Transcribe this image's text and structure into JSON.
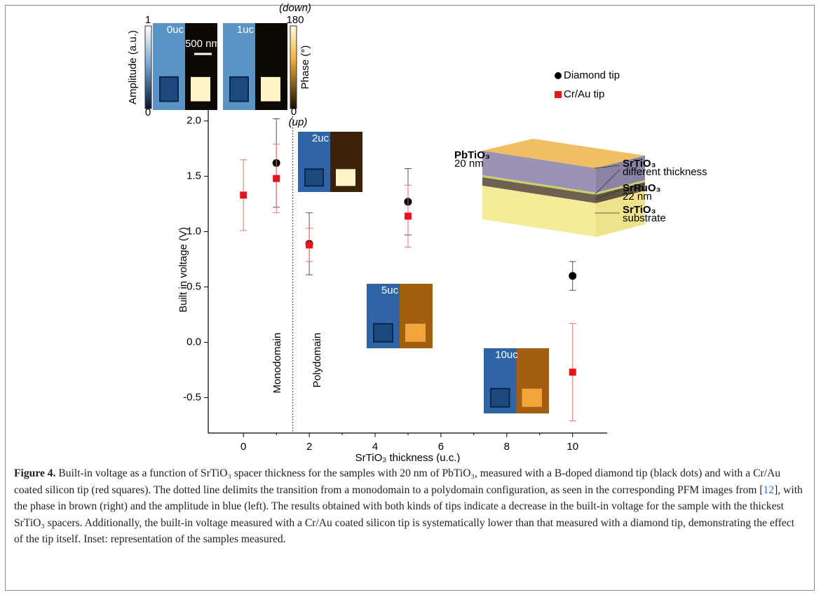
{
  "chart_data": {
    "type": "scatter",
    "x_label": "SrTiO₃ thickness (u.c.)",
    "y_label": "Built in voltage (V)",
    "xlim": [
      -1.07,
      11.05
    ],
    "xticks": [
      0,
      2,
      4,
      6,
      8,
      10
    ],
    "ylim": [
      -0.82,
      2.08
    ],
    "yticks": [
      {
        "value": 2,
        "label": "2.0"
      },
      {
        "value": 1.5,
        "label": "1.5"
      },
      {
        "value": 1,
        "label": "1.0"
      },
      {
        "value": 0.5,
        "label": "0.5"
      },
      {
        "value": 0,
        "label": "0.0"
      },
      {
        "value": -0.5,
        "label": "-0.5"
      }
    ],
    "series": [
      {
        "name": "Diamond tip",
        "color": "#000000",
        "marker": "circle",
        "x": [
          1,
          2,
          5,
          10
        ],
        "values": [
          1.62,
          0.89,
          1.27,
          0.6
        ],
        "errors": [
          0.4,
          0.28,
          0.3,
          0.13
        ]
      },
      {
        "name": "Cr/Au tip",
        "color": "#e8141b",
        "marker": "square",
        "x": [
          0,
          1,
          2,
          5,
          10
        ],
        "values": [
          1.33,
          1.48,
          0.88,
          1.14,
          -0.27
        ],
        "errors": [
          0.32,
          0.31,
          0.15,
          0.28,
          0.44
        ]
      }
    ],
    "divider_x": 1.5,
    "annotations": [
      "Monodomain",
      "Polydomain"
    ]
  },
  "insets": {
    "pfm_labels": [
      "0uc",
      "1uc",
      "2uc",
      "5uc",
      "10uc"
    ],
    "scale_bar": "500 nm",
    "amplitude_bar": {
      "label": "Amplitude (a.u.)",
      "max": "1",
      "min": "0"
    },
    "phase_bar": {
      "label": "Phase (°)",
      "top": "(down)",
      "max": "180",
      "min": "0",
      "bottom": "(up)"
    },
    "layers": [
      [
        "PbTiO₃",
        "20 nm"
      ],
      [
        "SrTiO₃",
        "different thickness"
      ],
      [
        "SrRuO₃",
        "22 nm"
      ],
      [
        "SrTiO₃",
        "substrate"
      ]
    ]
  },
  "caption": {
    "label": "Figure 4.",
    "text": " Built-in voltage as a function of SrTiO₃ spacer thickness for the samples with 20 nm of PbTiO₃, measured with a B-doped diamond tip (black dots) and with a Cr/Au coated silicon tip (red squares). The dotted line delimits the transition from a monodomain to a polydomain configuration, as seen in the corresponding PFM images from [",
    "ref": "12",
    "text_after": "], with the phase in brown (right) and the amplitude in blue (left). The results obtained with both kinds of tips indicate a decrease in the built-in voltage for the sample with the thickest SrTiO₃ spacers. Additionally, the built-in voltage measured with a Cr/Au coated silicon tip is systematically lower than that measured with a diamond tip, demonstrating the effect of the tip itself. Inset: representation of the samples measured."
  }
}
